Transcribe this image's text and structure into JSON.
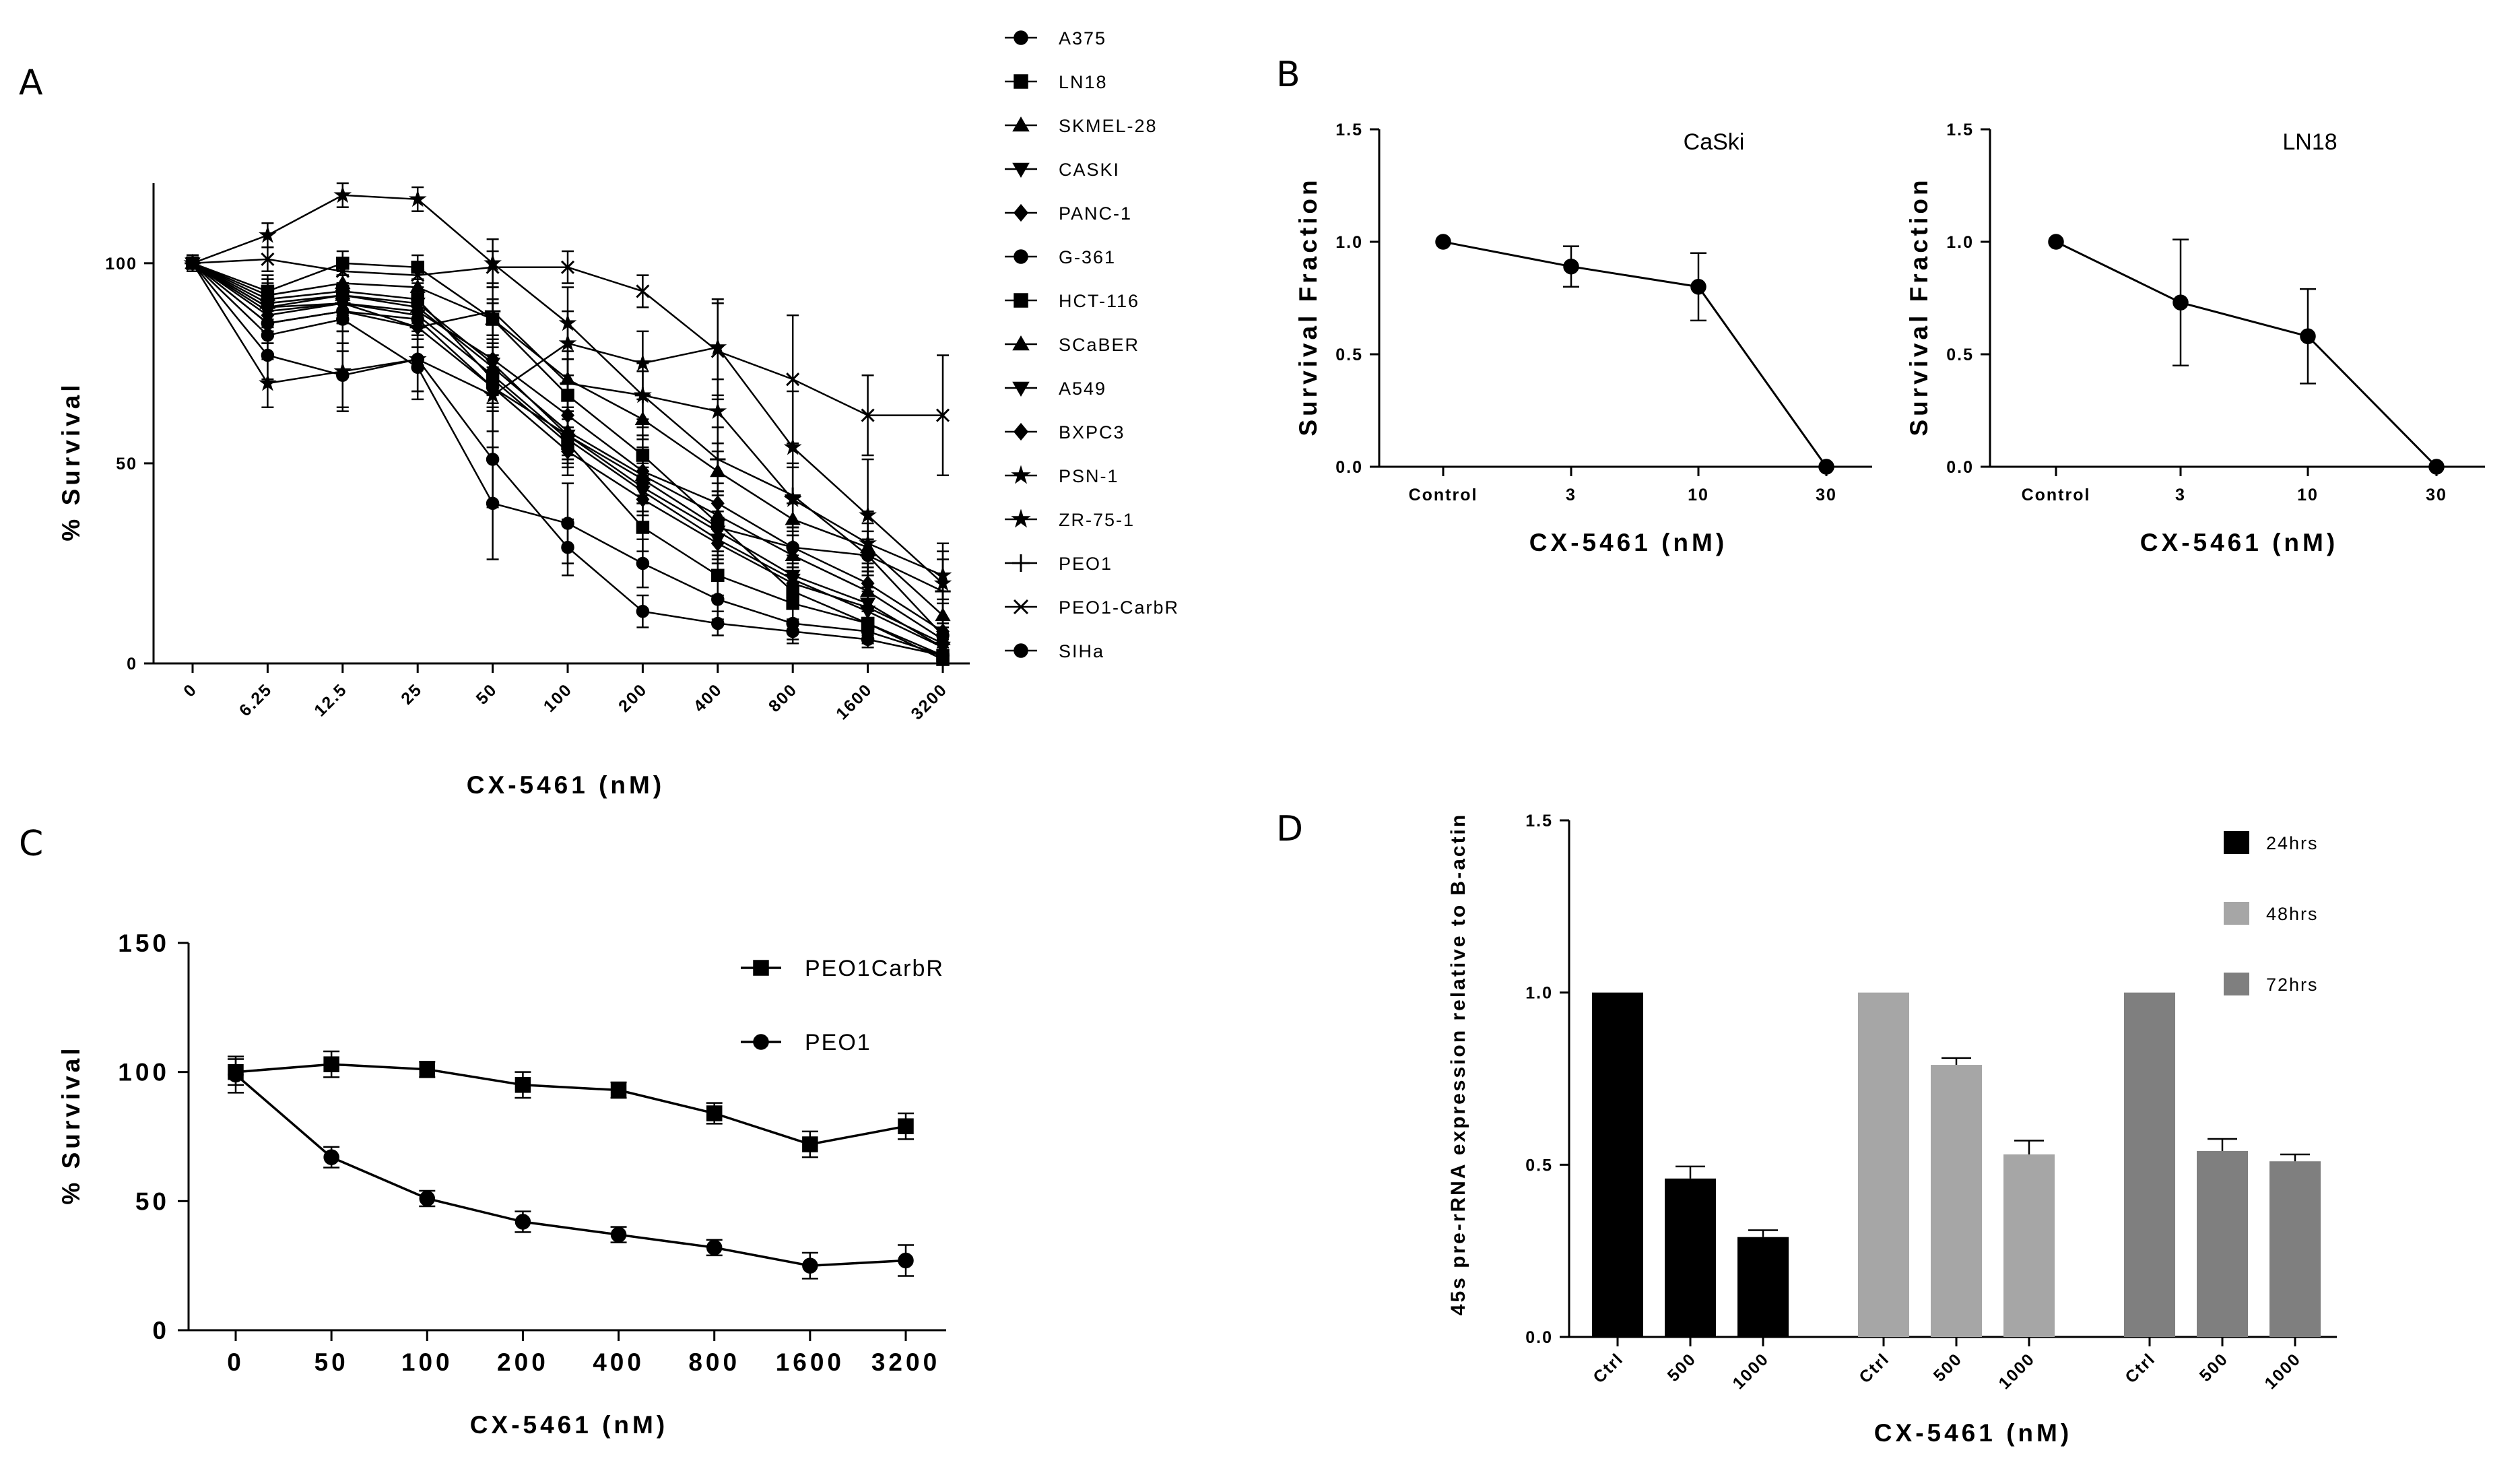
{
  "panels": [
    "A",
    "B",
    "C",
    "D"
  ],
  "chart_data": [
    {
      "panel": "A",
      "type": "line",
      "xlabel": "CX-5461 (nM)",
      "ylabel": "% Survival",
      "categories": [
        "0",
        "6.25",
        "12.5",
        "25",
        "50",
        "100",
        "200",
        "400",
        "800",
        "1600",
        "3200"
      ],
      "ylim": [
        0,
        120
      ],
      "yticks": [
        "0",
        "50",
        "100"
      ],
      "series": [
        {
          "name": "A375",
          "marker": "circle",
          "values": [
            100,
            85,
            88,
            86,
            69,
            57,
            46,
            34,
            29,
            27,
            7
          ],
          "err": [
            2,
            5,
            5,
            5,
            6,
            6,
            6,
            6,
            5,
            4,
            3
          ]
        },
        {
          "name": "LN18",
          "marker": "square",
          "values": [
            100,
            93,
            100,
            99,
            86,
            67,
            52,
            35,
            18,
            10,
            1
          ],
          "err": [
            2,
            4,
            3,
            3,
            4,
            5,
            5,
            5,
            4,
            3,
            1
          ]
        },
        {
          "name": "SKMEL-28",
          "marker": "triangle",
          "values": [
            100,
            92,
            95,
            94,
            86,
            71,
            61,
            48,
            36,
            29,
            12
          ],
          "err": [
            2,
            4,
            4,
            4,
            5,
            5,
            5,
            5,
            4,
            4,
            3
          ]
        },
        {
          "name": "CASKI",
          "marker": "triangle-down",
          "values": [
            100,
            89,
            92,
            90,
            75,
            57,
            44,
            33,
            22,
            15,
            4
          ],
          "err": [
            2,
            5,
            5,
            5,
            5,
            6,
            6,
            5,
            5,
            4,
            2
          ]
        },
        {
          "name": "PANC-1",
          "marker": "diamond",
          "values": [
            100,
            87,
            90,
            88,
            76,
            62,
            48,
            40,
            29,
            20,
            8
          ],
          "err": [
            2,
            5,
            5,
            5,
            5,
            5,
            6,
            5,
            5,
            4,
            3
          ]
        },
        {
          "name": "G-361",
          "marker": "circle",
          "values": [
            100,
            77,
            72,
            76,
            51,
            29,
            13,
            10,
            8,
            6,
            2
          ],
          "err": [
            2,
            6,
            8,
            8,
            12,
            7,
            4,
            3,
            3,
            2,
            1
          ]
        },
        {
          "name": "HCT-116",
          "marker": "square",
          "values": [
            100,
            91,
            93,
            91,
            71,
            55,
            34,
            22,
            15,
            10,
            2
          ],
          "err": [
            2,
            5,
            5,
            5,
            6,
            6,
            6,
            5,
            4,
            3,
            1
          ]
        },
        {
          "name": "SCaBER",
          "marker": "triangle",
          "values": [
            100,
            90,
            92,
            89,
            74,
            58,
            47,
            37,
            27,
            18,
            6
          ],
          "err": [
            2,
            5,
            5,
            5,
            5,
            6,
            6,
            5,
            5,
            4,
            2
          ]
        },
        {
          "name": "A549",
          "marker": "triangle-down",
          "values": [
            100,
            88,
            90,
            87,
            72,
            56,
            43,
            31,
            21,
            13,
            4
          ],
          "err": [
            2,
            5,
            5,
            5,
            5,
            6,
            6,
            5,
            5,
            4,
            2
          ]
        },
        {
          "name": "BXPC3",
          "marker": "diamond",
          "values": [
            100,
            85,
            88,
            84,
            69,
            53,
            41,
            30,
            20,
            14,
            5
          ],
          "err": [
            2,
            5,
            5,
            5,
            5,
            6,
            6,
            5,
            5,
            4,
            2
          ]
        },
        {
          "name": "PSN-1",
          "marker": "star",
          "values": [
            100,
            70,
            73,
            76,
            67,
            80,
            75,
            79,
            54,
            37,
            20
          ],
          "err": [
            2,
            6,
            10,
            8,
            9,
            8,
            8,
            12,
            14,
            14,
            10
          ]
        },
        {
          "name": "ZR-75-1",
          "marker": "star",
          "values": [
            100,
            107,
            117,
            116,
            100,
            85,
            67,
            63,
            41,
            30,
            22
          ],
          "err": [
            2,
            3,
            3,
            3,
            6,
            9,
            6,
            8,
            8,
            8,
            6
          ]
        },
        {
          "name": "PEO1",
          "marker": "plus",
          "values": [
            100,
            89,
            90,
            84,
            88,
            70,
            67,
            51,
            42,
            27,
            18
          ],
          "err": [
            2,
            5,
            5,
            5,
            6,
            8,
            8,
            8,
            8,
            8,
            8
          ]
        },
        {
          "name": "PEO1-CarbR",
          "marker": "x",
          "values": [
            100,
            101,
            98,
            97,
            99,
            99,
            93,
            78,
            71,
            62,
            62
          ],
          "err": [
            2,
            3,
            3,
            3,
            4,
            4,
            4,
            12,
            16,
            10,
            15
          ]
        },
        {
          "name": "SIHa",
          "marker": "circle",
          "values": [
            100,
            82,
            86,
            74,
            40,
            35,
            25,
            16,
            10,
            8,
            2
          ],
          "err": [
            2,
            5,
            8,
            8,
            14,
            10,
            6,
            5,
            4,
            3,
            1
          ]
        }
      ]
    },
    {
      "panel": "B-left",
      "type": "line",
      "title": "CaSki",
      "xlabel": "CX-5461 (nM)",
      "ylabel": "Survival Fraction",
      "categories": [
        "Control",
        "3",
        "10",
        "30"
      ],
      "ylim": [
        0,
        1.5
      ],
      "yticks": [
        "0.0",
        "0.5",
        "1.0",
        "1.5"
      ],
      "values": [
        1.0,
        0.89,
        0.8,
        0.0
      ],
      "err": [
        0,
        0.09,
        0.15,
        0
      ]
    },
    {
      "panel": "B-right",
      "type": "line",
      "title": "LN18",
      "xlabel": "CX-5461 (nM)",
      "ylabel": "Survival Fraction",
      "categories": [
        "Control",
        "3",
        "10",
        "30"
      ],
      "ylim": [
        0,
        1.5
      ],
      "yticks": [
        "0.0",
        "0.5",
        "1.0",
        "1.5"
      ],
      "values": [
        1.0,
        0.73,
        0.58,
        0.0
      ],
      "err": [
        0,
        0.28,
        0.21,
        0
      ]
    },
    {
      "panel": "C",
      "type": "line",
      "xlabel": "CX-5461 (nM)",
      "ylabel": "% Survival",
      "categories": [
        "0",
        "50",
        "100",
        "200",
        "400",
        "800",
        "1600",
        "3200"
      ],
      "ylim": [
        0,
        150
      ],
      "yticks": [
        "0",
        "50",
        "100",
        "150"
      ],
      "series": [
        {
          "name": "PEO1CarbR",
          "marker": "square",
          "values": [
            100,
            103,
            101,
            95,
            93,
            84,
            72,
            79
          ],
          "err": [
            5,
            5,
            3,
            5,
            3,
            4,
            5,
            5
          ]
        },
        {
          "name": "PEO1",
          "marker": "circle",
          "values": [
            99,
            67,
            51,
            42,
            37,
            32,
            25,
            27
          ],
          "err": [
            7,
            4,
            3,
            4,
            3,
            3,
            5,
            6
          ]
        }
      ]
    },
    {
      "panel": "D",
      "type": "bar",
      "xlabel": "CX-5461 (nM)",
      "ylabel": "45s pre-rRNA expression relative to B-actin",
      "categories": [
        "Ctrl",
        "500",
        "1000"
      ],
      "ylim": [
        0,
        1.5
      ],
      "yticks": [
        "0.0",
        "0.5",
        "1.0",
        "1.5"
      ],
      "series": [
        {
          "name": "24hrs",
          "color": "#000000",
          "values": [
            1.0,
            0.46,
            0.29
          ],
          "err": [
            0,
            0.035,
            0.02
          ]
        },
        {
          "name": "48hrs",
          "color": "#a6a6a6",
          "values": [
            1.0,
            0.79,
            0.53
          ],
          "err": [
            0,
            0.02,
            0.04
          ]
        },
        {
          "name": "72hrs",
          "color": "#7f7f7f",
          "values": [
            1.0,
            0.54,
            0.51
          ],
          "err": [
            0,
            0.035,
            0.02
          ]
        }
      ]
    }
  ]
}
